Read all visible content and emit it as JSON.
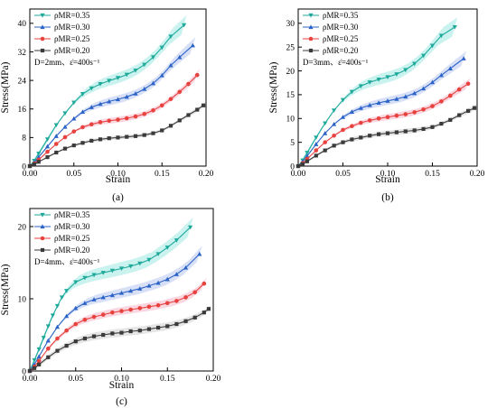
{
  "chart_data": [
    {
      "type": "line",
      "panel_label": "(a)",
      "xlabel": "Strain",
      "ylabel": "Stress(MPa)",
      "xlim": [
        0,
        0.2
      ],
      "ylim": [
        0,
        44
      ],
      "xticks": [
        "0.00",
        "0.05",
        "0.10",
        "0.15",
        "0.20"
      ],
      "xtick_values": [
        0,
        0.05,
        0.1,
        0.15,
        0.2
      ],
      "yticks": [
        "0",
        "8",
        "16",
        "24",
        "32",
        "40"
      ],
      "ytick_values": [
        0,
        8,
        16,
        24,
        32,
        40
      ],
      "annotation": "D=2mm、ε̇=400s⁻¹",
      "series": [
        {
          "name": "ρMR=0.35",
          "x": [
            0,
            0.005,
            0.01,
            0.02,
            0.03,
            0.04,
            0.05,
            0.06,
            0.07,
            0.08,
            0.09,
            0.1,
            0.11,
            0.12,
            0.13,
            0.14,
            0.15,
            0.16,
            0.175
          ],
          "y": [
            0,
            1.5,
            3.5,
            7.5,
            11.5,
            14.8,
            17.8,
            20.2,
            21.8,
            23.0,
            23.9,
            24.7,
            25.6,
            26.8,
            28.4,
            30.5,
            33.2,
            36.3,
            39.5
          ]
        },
        {
          "name": "ρMR=0.30",
          "x": [
            0,
            0.005,
            0.01,
            0.02,
            0.03,
            0.04,
            0.05,
            0.06,
            0.07,
            0.08,
            0.09,
            0.1,
            0.11,
            0.12,
            0.13,
            0.14,
            0.15,
            0.16,
            0.17,
            0.185
          ],
          "y": [
            0,
            1.0,
            2.5,
            5.5,
            8.4,
            11.0,
            13.3,
            15.2,
            16.5,
            17.4,
            18.1,
            18.7,
            19.4,
            20.3,
            21.6,
            23.2,
            25.4,
            28.2,
            30.5,
            33.8
          ]
        },
        {
          "name": "ρMR=0.25",
          "x": [
            0,
            0.005,
            0.01,
            0.02,
            0.03,
            0.04,
            0.05,
            0.06,
            0.07,
            0.08,
            0.09,
            0.1,
            0.11,
            0.12,
            0.13,
            0.14,
            0.15,
            0.16,
            0.17,
            0.18,
            0.19
          ],
          "y": [
            0,
            0.7,
            1.8,
            4.0,
            6.2,
            8.1,
            9.7,
            10.9,
            11.7,
            12.3,
            12.7,
            13.0,
            13.4,
            13.9,
            14.6,
            15.6,
            17.0,
            18.8,
            20.8,
            23.0,
            25.5
          ]
        },
        {
          "name": "ρMR=0.20",
          "x": [
            0,
            0.005,
            0.01,
            0.02,
            0.03,
            0.04,
            0.05,
            0.06,
            0.07,
            0.08,
            0.09,
            0.1,
            0.11,
            0.12,
            0.13,
            0.14,
            0.15,
            0.16,
            0.17,
            0.18,
            0.19,
            0.197
          ],
          "y": [
            0,
            0.5,
            1.2,
            2.5,
            3.8,
            4.9,
            5.8,
            6.5,
            7.1,
            7.5,
            7.8,
            8.0,
            8.2,
            8.4,
            8.7,
            9.2,
            10.0,
            11.3,
            12.8,
            14.3,
            15.8,
            17.0
          ]
        }
      ]
    },
    {
      "type": "line",
      "panel_label": "(b)",
      "xlabel": "Strain",
      "ylabel": "Stress(MPa)",
      "xlim": [
        0,
        0.2
      ],
      "ylim": [
        0,
        33
      ],
      "xticks": [
        "0.00",
        "0.05",
        "0.10",
        "0.15",
        "0.20"
      ],
      "xtick_values": [
        0,
        0.05,
        0.1,
        0.15,
        0.2
      ],
      "yticks": [
        "0",
        "5",
        "10",
        "15",
        "20",
        "25",
        "30"
      ],
      "ytick_values": [
        0,
        5,
        10,
        15,
        20,
        25,
        30
      ],
      "annotation": "D=3mm、ε̇=400s⁻¹",
      "series": [
        {
          "name": "ρMR=0.35",
          "x": [
            0,
            0.005,
            0.01,
            0.02,
            0.03,
            0.04,
            0.05,
            0.06,
            0.07,
            0.08,
            0.09,
            0.1,
            0.11,
            0.12,
            0.13,
            0.14,
            0.15,
            0.16,
            0.175
          ],
          "y": [
            0,
            1.2,
            2.8,
            6.0,
            9.0,
            11.7,
            13.9,
            15.6,
            16.8,
            17.6,
            18.2,
            18.7,
            19.3,
            20.2,
            21.5,
            23.2,
            25.3,
            27.4,
            29.2
          ]
        },
        {
          "name": "ρMR=0.30",
          "x": [
            0,
            0.005,
            0.01,
            0.02,
            0.03,
            0.04,
            0.05,
            0.06,
            0.07,
            0.08,
            0.09,
            0.1,
            0.11,
            0.12,
            0.13,
            0.14,
            0.15,
            0.16,
            0.17,
            0.185
          ],
          "y": [
            0,
            0.9,
            2.1,
            4.6,
            6.9,
            8.8,
            10.3,
            11.4,
            12.2,
            12.8,
            13.3,
            13.7,
            14.1,
            14.6,
            15.3,
            16.3,
            17.6,
            19.1,
            20.5,
            22.6
          ]
        },
        {
          "name": "ρMR=0.25",
          "x": [
            0,
            0.005,
            0.01,
            0.02,
            0.03,
            0.04,
            0.05,
            0.06,
            0.07,
            0.08,
            0.09,
            0.1,
            0.11,
            0.12,
            0.13,
            0.14,
            0.15,
            0.16,
            0.17,
            0.18,
            0.19
          ],
          "y": [
            0,
            0.6,
            1.5,
            3.3,
            5.0,
            6.4,
            7.6,
            8.4,
            9.1,
            9.6,
            10.0,
            10.3,
            10.6,
            10.9,
            11.3,
            11.9,
            12.6,
            13.6,
            14.8,
            16.1,
            17.3
          ]
        },
        {
          "name": "ρMR=0.20",
          "x": [
            0,
            0.005,
            0.01,
            0.02,
            0.03,
            0.04,
            0.05,
            0.06,
            0.07,
            0.08,
            0.09,
            0.1,
            0.11,
            0.12,
            0.13,
            0.14,
            0.15,
            0.16,
            0.17,
            0.18,
            0.19,
            0.197
          ],
          "y": [
            0,
            0.4,
            1.0,
            2.2,
            3.3,
            4.3,
            5.0,
            5.6,
            6.0,
            6.4,
            6.7,
            6.9,
            7.1,
            7.3,
            7.5,
            7.8,
            8.2,
            8.9,
            9.7,
            10.7,
            11.6,
            12.2
          ]
        }
      ]
    },
    {
      "type": "line",
      "panel_label": "(c)",
      "xlabel": "Strain",
      "ylabel": "Stress(MPa)",
      "xlim": [
        0,
        0.2
      ],
      "ylim": [
        0,
        22.5
      ],
      "xticks": [
        "0.00",
        "0.05",
        "0.10",
        "0.15",
        "0.20"
      ],
      "xtick_values": [
        0,
        0.05,
        0.1,
        0.15,
        0.2
      ],
      "yticks": [
        "0",
        "10",
        "20"
      ],
      "ytick_values": [
        0,
        10,
        20
      ],
      "annotation": "D=4mm、ε̇=400s⁻¹",
      "series": [
        {
          "name": "ρMR=0.35",
          "x": [
            0,
            0.005,
            0.01,
            0.015,
            0.02,
            0.025,
            0.03,
            0.035,
            0.04,
            0.05,
            0.06,
            0.07,
            0.08,
            0.09,
            0.1,
            0.11,
            0.12,
            0.13,
            0.14,
            0.15,
            0.16,
            0.175
          ],
          "y": [
            0,
            1.5,
            3.0,
            4.6,
            6.2,
            7.7,
            9.0,
            10.2,
            11.1,
            12.3,
            12.9,
            13.3,
            13.6,
            13.9,
            14.2,
            14.5,
            14.9,
            15.4,
            16.2,
            17.1,
            18.1,
            19.9
          ]
        },
        {
          "name": "ρMR=0.30",
          "x": [
            0,
            0.005,
            0.01,
            0.02,
            0.03,
            0.04,
            0.05,
            0.06,
            0.07,
            0.08,
            0.09,
            0.1,
            0.11,
            0.12,
            0.13,
            0.14,
            0.15,
            0.16,
            0.17,
            0.185
          ],
          "y": [
            0,
            0.9,
            2.0,
            4.2,
            6.1,
            7.6,
            8.7,
            9.4,
            9.9,
            10.2,
            10.5,
            10.8,
            11.1,
            11.4,
            11.8,
            12.2,
            12.7,
            13.4,
            14.3,
            16.2
          ]
        },
        {
          "name": "ρMR=0.25",
          "x": [
            0,
            0.005,
            0.01,
            0.02,
            0.03,
            0.04,
            0.05,
            0.06,
            0.07,
            0.08,
            0.09,
            0.1,
            0.11,
            0.12,
            0.13,
            0.14,
            0.15,
            0.16,
            0.17,
            0.18,
            0.19
          ],
          "y": [
            0,
            0.6,
            1.4,
            3.1,
            4.5,
            5.6,
            6.5,
            7.1,
            7.5,
            7.8,
            8.1,
            8.3,
            8.5,
            8.7,
            8.9,
            9.1,
            9.4,
            9.7,
            10.2,
            10.9,
            12.1
          ]
        },
        {
          "name": "ρMR=0.20",
          "x": [
            0,
            0.005,
            0.01,
            0.02,
            0.03,
            0.04,
            0.05,
            0.06,
            0.07,
            0.08,
            0.09,
            0.1,
            0.11,
            0.12,
            0.13,
            0.14,
            0.15,
            0.16,
            0.17,
            0.18,
            0.19,
            0.195
          ],
          "y": [
            0,
            0.4,
            0.9,
            1.9,
            2.8,
            3.5,
            4.1,
            4.5,
            4.8,
            5.0,
            5.2,
            5.3,
            5.5,
            5.6,
            5.8,
            6.0,
            6.2,
            6.5,
            6.9,
            7.4,
            8.1,
            8.6
          ]
        }
      ]
    }
  ],
  "style": {
    "series_colors": [
      "#1fa99b",
      "#2b63c7",
      "#e8423f",
      "#3a3a3a"
    ],
    "band_colors": [
      "#9fe9e1",
      "#b6c6f0",
      "#f5b7c7",
      "#cfcfcf"
    ],
    "markers": [
      "triangle-down",
      "triangle-up",
      "circle",
      "square"
    ],
    "legend_placement": "top-left",
    "grid": false
  }
}
